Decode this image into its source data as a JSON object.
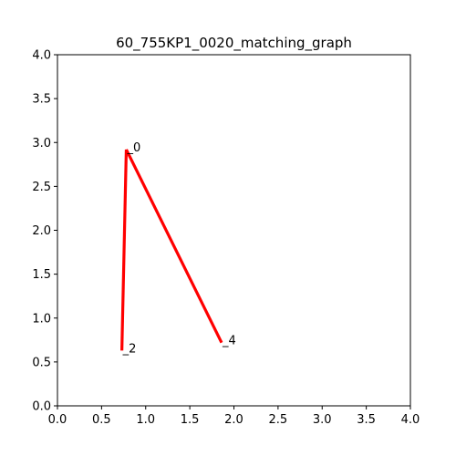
{
  "chart_data": {
    "type": "line",
    "title": "60_755KP1_0020_matching_graph",
    "xlabel": "",
    "ylabel": "",
    "xlim": [
      0,
      4
    ],
    "ylim": [
      0,
      4
    ],
    "grid": false,
    "x_ticks": [
      "0.0",
      "0.5",
      "1.0",
      "1.5",
      "2.0",
      "2.5",
      "3.0",
      "3.5",
      "4.0"
    ],
    "y_ticks": [
      "0.0",
      "0.5",
      "1.0",
      "1.5",
      "2.0",
      "2.5",
      "3.0",
      "3.5",
      "4.0"
    ],
    "nodes": [
      {
        "label": "_0",
        "x": 0.78,
        "y": 2.92
      },
      {
        "label": "_2",
        "x": 0.73,
        "y": 0.63
      },
      {
        "label": "_4",
        "x": 1.86,
        "y": 0.72
      }
    ],
    "edges": [
      {
        "from": 0,
        "to": 2
      },
      {
        "from": 0,
        "to": 4
      }
    ],
    "edge_color": "#ff0000"
  }
}
